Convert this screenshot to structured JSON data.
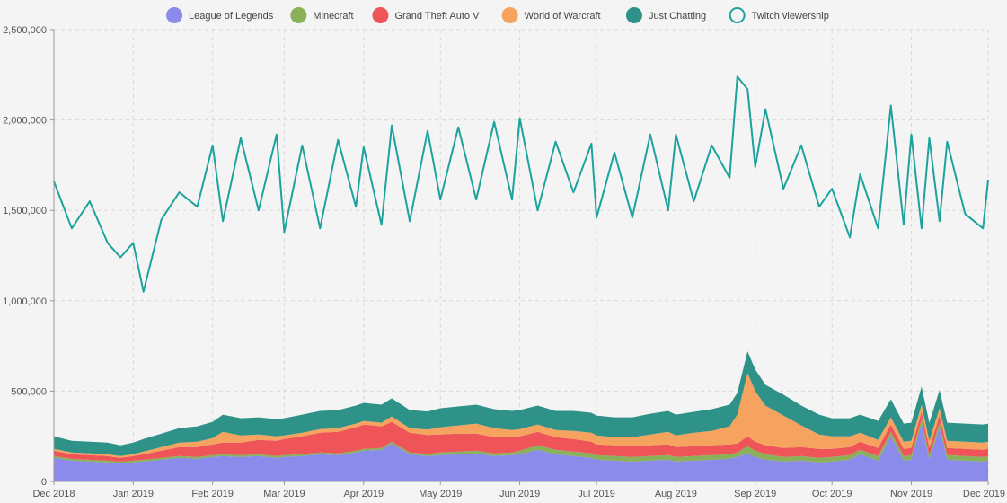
{
  "chart_data": {
    "type": "area",
    "title": "",
    "xlabel": "",
    "ylabel": "",
    "x_range": [
      "2018-12-01",
      "2019-12-01"
    ],
    "ylim": [
      0,
      2500000
    ],
    "grid": true,
    "legend_position": "top-center",
    "x_ticks": [
      {
        "date": "2018-12-01",
        "label": "Dec 2018"
      },
      {
        "date": "2019-01-01",
        "label": "Jan 2019"
      },
      {
        "date": "2019-02-01",
        "label": "Feb 2019"
      },
      {
        "date": "2019-03-01",
        "label": "Mar 2019"
      },
      {
        "date": "2019-04-01",
        "label": "Apr 2019"
      },
      {
        "date": "2019-05-01",
        "label": "May 2019"
      },
      {
        "date": "2019-06-01",
        "label": "Jun 2019"
      },
      {
        "date": "2019-07-01",
        "label": "Jul 2019"
      },
      {
        "date": "2019-08-01",
        "label": "Aug 2019"
      },
      {
        "date": "2019-09-01",
        "label": "Sep 2019"
      },
      {
        "date": "2019-10-01",
        "label": "Oct 2019"
      },
      {
        "date": "2019-11-01",
        "label": "Nov 2019"
      },
      {
        "date": "2019-12-01",
        "label": "Dec 2019"
      }
    ],
    "y_ticks": [
      {
        "value": 0,
        "label": "0"
      },
      {
        "value": 500000,
        "label": "500,000"
      },
      {
        "value": 1000000,
        "label": "1,000,000"
      },
      {
        "value": 1500000,
        "label": "1,500,000"
      },
      {
        "value": 2000000,
        "label": "2,000,000"
      },
      {
        "value": 2500000,
        "label": "2,500,000"
      }
    ],
    "x": [
      "2018-12-01",
      "2018-12-08",
      "2018-12-15",
      "2018-12-22",
      "2018-12-27",
      "2019-01-01",
      "2019-01-05",
      "2019-01-12",
      "2019-01-19",
      "2019-01-26",
      "2019-02-01",
      "2019-02-05",
      "2019-02-12",
      "2019-02-19",
      "2019-02-26",
      "2019-03-01",
      "2019-03-08",
      "2019-03-15",
      "2019-03-22",
      "2019-03-29",
      "2019-04-01",
      "2019-04-08",
      "2019-04-12",
      "2019-04-19",
      "2019-04-26",
      "2019-05-01",
      "2019-05-08",
      "2019-05-15",
      "2019-05-22",
      "2019-05-29",
      "2019-06-01",
      "2019-06-08",
      "2019-06-15",
      "2019-06-22",
      "2019-06-29",
      "2019-07-01",
      "2019-07-08",
      "2019-07-15",
      "2019-07-22",
      "2019-07-29",
      "2019-08-01",
      "2019-08-08",
      "2019-08-15",
      "2019-08-22",
      "2019-08-25",
      "2019-08-29",
      "2019-09-01",
      "2019-09-05",
      "2019-09-12",
      "2019-09-19",
      "2019-09-26",
      "2019-10-01",
      "2019-10-08",
      "2019-10-12",
      "2019-10-19",
      "2019-10-24",
      "2019-10-29",
      "2019-11-01",
      "2019-11-05",
      "2019-11-08",
      "2019-11-12",
      "2019-11-15",
      "2019-11-22",
      "2019-11-29",
      "2019-12-01"
    ],
    "series": [
      {
        "name": "League of Legends",
        "kind": "area",
        "color": "#8b8bec",
        "values": [
          130000,
          115000,
          110000,
          105000,
          100000,
          105000,
          110000,
          120000,
          130000,
          125000,
          135000,
          140000,
          135000,
          140000,
          130000,
          135000,
          140000,
          150000,
          145000,
          160000,
          170000,
          175000,
          210000,
          150000,
          140000,
          145000,
          150000,
          155000,
          140000,
          145000,
          150000,
          175000,
          150000,
          140000,
          130000,
          120000,
          115000,
          110000,
          115000,
          120000,
          110000,
          115000,
          120000,
          125000,
          135000,
          155000,
          135000,
          120000,
          110000,
          115000,
          105000,
          110000,
          120000,
          150000,
          115000,
          250000,
          115000,
          120000,
          320000,
          120000,
          300000,
          120000,
          115000,
          110000,
          115000
        ]
      },
      {
        "name": "Minecraft",
        "kind": "area",
        "color": "#8ab15a",
        "values": [
          10000,
          10000,
          10000,
          10000,
          10000,
          10000,
          10000,
          10000,
          10000,
          10000,
          10000,
          10000,
          10000,
          10000,
          10000,
          10000,
          10000,
          10000,
          10000,
          10000,
          10000,
          10000,
          10000,
          10000,
          12000,
          15000,
          15000,
          15000,
          15000,
          15000,
          20000,
          25000,
          25000,
          25000,
          25000,
          25000,
          25000,
          25000,
          25000,
          25000,
          25000,
          25000,
          25000,
          25000,
          25000,
          40000,
          35000,
          30000,
          25000,
          25000,
          25000,
          25000,
          25000,
          25000,
          25000,
          25000,
          25000,
          25000,
          25000,
          25000,
          25000,
          25000,
          25000,
          25000,
          25000
        ]
      },
      {
        "name": "Grand Theft Auto V",
        "kind": "area",
        "color": "#ef5458",
        "values": [
          30000,
          25000,
          25000,
          25000,
          20000,
          25000,
          30000,
          40000,
          50000,
          55000,
          60000,
          65000,
          70000,
          80000,
          85000,
          90000,
          100000,
          110000,
          120000,
          130000,
          135000,
          120000,
          110000,
          110000,
          105000,
          100000,
          100000,
          95000,
          90000,
          85000,
          80000,
          75000,
          70000,
          70000,
          65000,
          60000,
          60000,
          60000,
          60000,
          60000,
          55000,
          55000,
          55000,
          55000,
          50000,
          55000,
          50000,
          50000,
          50000,
          50000,
          50000,
          45000,
          45000,
          45000,
          45000,
          40000,
          40000,
          40000,
          40000,
          40000,
          40000,
          40000,
          40000,
          40000,
          40000
        ]
      },
      {
        "name": "World of Warcraft",
        "kind": "area",
        "color": "#f5a35e",
        "values": [
          10000,
          10000,
          10000,
          10000,
          10000,
          10000,
          15000,
          20000,
          25000,
          30000,
          35000,
          60000,
          40000,
          30000,
          25000,
          20000,
          20000,
          20000,
          20000,
          20000,
          20000,
          20000,
          30000,
          25000,
          30000,
          40000,
          45000,
          55000,
          50000,
          40000,
          40000,
          40000,
          40000,
          45000,
          50000,
          50000,
          45000,
          50000,
          60000,
          70000,
          65000,
          75000,
          80000,
          100000,
          160000,
          350000,
          280000,
          220000,
          180000,
          120000,
          80000,
          70000,
          60000,
          50000,
          45000,
          40000,
          40000,
          40000,
          40000,
          40000,
          40000,
          40000,
          40000,
          40000,
          40000
        ]
      },
      {
        "name": "Just Chatting",
        "kind": "area",
        "color": "#2e9288",
        "values": [
          70000,
          65000,
          65000,
          65000,
          60000,
          65000,
          70000,
          75000,
          80000,
          85000,
          90000,
          95000,
          95000,
          95000,
          95000,
          95000,
          100000,
          100000,
          100000,
          100000,
          100000,
          100000,
          100000,
          100000,
          100000,
          105000,
          105000,
          105000,
          105000,
          105000,
          105000,
          105000,
          105000,
          110000,
          110000,
          110000,
          110000,
          110000,
          115000,
          115000,
          115000,
          115000,
          120000,
          120000,
          120000,
          120000,
          120000,
          115000,
          115000,
          110000,
          110000,
          100000,
          100000,
          100000,
          105000,
          100000,
          100000,
          100000,
          100000,
          100000,
          100000,
          100000,
          100000,
          100000,
          100000
        ]
      },
      {
        "name": "Twitch viewership",
        "kind": "line",
        "color": "#1ca39d",
        "values": [
          1660000,
          1400000,
          1550000,
          1320000,
          1240000,
          1320000,
          1050000,
          1450000,
          1600000,
          1520000,
          1860000,
          1440000,
          1900000,
          1500000,
          1920000,
          1380000,
          1860000,
          1400000,
          1890000,
          1520000,
          1850000,
          1420000,
          1970000,
          1440000,
          1940000,
          1560000,
          1960000,
          1560000,
          1990000,
          1560000,
          2010000,
          1500000,
          1880000,
          1600000,
          1870000,
          1460000,
          1820000,
          1460000,
          1920000,
          1500000,
          1920000,
          1550000,
          1860000,
          1680000,
          2240000,
          2170000,
          1740000,
          2060000,
          1620000,
          1860000,
          1520000,
          1620000,
          1350000,
          1700000,
          1400000,
          2080000,
          1420000,
          1920000,
          1400000,
          1900000,
          1440000,
          1880000,
          1480000,
          1400000,
          1670000
        ]
      }
    ]
  }
}
